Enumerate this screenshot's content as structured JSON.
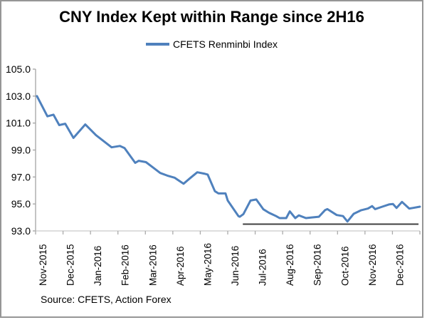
{
  "chart_data": {
    "type": "line",
    "title": "CNY Index Kept within Range since 2H16",
    "legend_label": "CFETS Renminbi Index",
    "legend_position": "top-center",
    "source_note": "Source: CFETS, Action Forex",
    "grid": false,
    "series_color": "#4f81bd",
    "frame_border_color": "#969696",
    "ylim": [
      93.0,
      105.0
    ],
    "y_ticks": [
      93,
      95,
      97,
      99,
      101,
      103,
      105
    ],
    "y_tick_labels": [
      "93.0",
      "95.0",
      "97.0",
      "99.0",
      "101.0",
      "103.0",
      "105.0"
    ],
    "x_tick_labels": [
      "Nov-2015",
      "Dec-2015",
      "Jan-2016",
      "Feb-2016",
      "Mar-2016",
      "Apr-2016",
      "May-2016",
      "Jun-2016",
      "Jul-2016",
      "Aug-2016",
      "Sep-2016",
      "Oct-2016",
      "Nov-2016",
      "Dec-2016"
    ],
    "axis_months": 14,
    "range_line": {
      "description": "horizontal support line marking range since 2H16",
      "start_month": 7.55,
      "end_month": 13.95,
      "value": 93.5,
      "color": "#404040"
    },
    "series": [
      {
        "name": "CFETS Renminbi Index",
        "color": "#4f81bd",
        "points": [
          [
            0.05,
            103.0
          ],
          [
            0.43,
            101.5
          ],
          [
            0.65,
            101.62
          ],
          [
            0.86,
            100.85
          ],
          [
            1.08,
            100.95
          ],
          [
            1.38,
            99.9
          ],
          [
            1.81,
            100.9
          ],
          [
            2.2,
            100.1
          ],
          [
            2.77,
            99.2
          ],
          [
            3.07,
            99.3
          ],
          [
            3.24,
            99.15
          ],
          [
            3.63,
            98.05
          ],
          [
            3.76,
            98.2
          ],
          [
            4.02,
            98.1
          ],
          [
            4.28,
            97.7
          ],
          [
            4.54,
            97.3
          ],
          [
            4.8,
            97.1
          ],
          [
            5.06,
            96.95
          ],
          [
            5.39,
            96.5
          ],
          [
            5.65,
            96.95
          ],
          [
            5.89,
            97.35
          ],
          [
            6.14,
            97.25
          ],
          [
            6.27,
            97.18
          ],
          [
            6.53,
            95.95
          ],
          [
            6.66,
            95.78
          ],
          [
            6.92,
            95.78
          ],
          [
            7.0,
            95.25
          ],
          [
            7.39,
            94.1
          ],
          [
            7.44,
            94.05
          ],
          [
            7.57,
            94.25
          ],
          [
            7.83,
            95.25
          ],
          [
            8.04,
            95.33
          ],
          [
            8.3,
            94.6
          ],
          [
            8.5,
            94.35
          ],
          [
            8.76,
            94.1
          ],
          [
            8.89,
            93.95
          ],
          [
            9.13,
            93.95
          ],
          [
            9.26,
            94.45
          ],
          [
            9.46,
            93.95
          ],
          [
            9.59,
            94.15
          ],
          [
            9.85,
            93.95
          ],
          [
            10.06,
            94.0
          ],
          [
            10.32,
            94.05
          ],
          [
            10.55,
            94.55
          ],
          [
            10.63,
            94.62
          ],
          [
            10.97,
            94.18
          ],
          [
            11.2,
            94.1
          ],
          [
            11.36,
            93.7
          ],
          [
            11.59,
            94.27
          ],
          [
            11.85,
            94.53
          ],
          [
            12.11,
            94.66
          ],
          [
            12.26,
            94.84
          ],
          [
            12.37,
            94.62
          ],
          [
            12.63,
            94.8
          ],
          [
            12.89,
            94.97
          ],
          [
            13.02,
            95.0
          ],
          [
            13.15,
            94.7
          ],
          [
            13.35,
            95.15
          ],
          [
            13.61,
            94.66
          ],
          [
            13.74,
            94.7
          ],
          [
            14.0,
            94.8
          ]
        ]
      }
    ]
  }
}
